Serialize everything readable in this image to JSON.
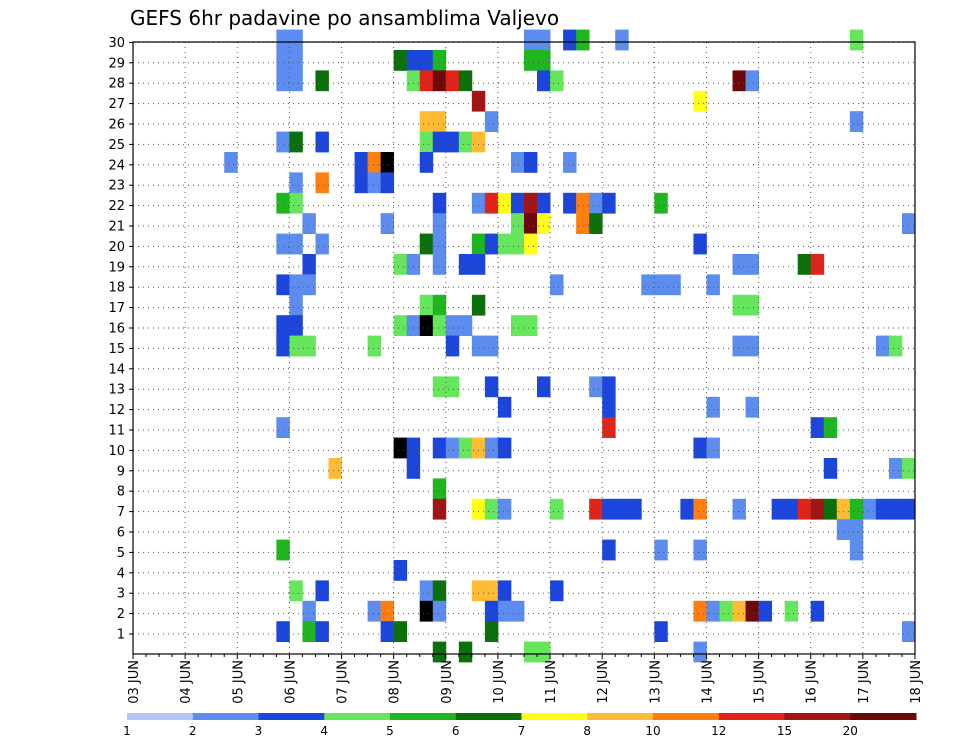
{
  "chart_data": {
    "type": "heatmap",
    "title": "GEFS 6hr padavine po ansamblima Valjevo",
    "xlabel": "",
    "ylabel": "",
    "x_ticks": [
      "03 JUN",
      "04 JUN",
      "05 JUN",
      "06 JUN",
      "07 JUN",
      "08 JUN",
      "09 JUN",
      "10 JUN",
      "11 JUN",
      "12 JUN",
      "13 JUN",
      "14 JUN",
      "15 JUN",
      "16 JUN",
      "17 JUN",
      "18 JUN"
    ],
    "xlim": [
      0,
      60
    ],
    "y_ticks": [
      "1",
      "2",
      "3",
      "4",
      "5",
      "6",
      "7",
      "8",
      "9",
      "10",
      "11",
      "12",
      "13",
      "14",
      "15",
      "16",
      "17",
      "18",
      "19",
      "20",
      "21",
      "22",
      "23",
      "24",
      "25",
      "26",
      "27",
      "28",
      "29",
      "30"
    ],
    "ylim": [
      0,
      30
    ],
    "grid": true,
    "colorbar": {
      "placement": "bottom",
      "labels": [
        "1",
        "2",
        "3",
        "4",
        "5",
        "6",
        "7",
        "8",
        "10",
        "12",
        "15",
        "20"
      ],
      "colors": [
        "#b3c6f7",
        "#5c8ced",
        "#1c46db",
        "#66e65c",
        "#1fb61f",
        "#0b700b",
        "#ffff1a",
        "#ffbb33",
        "#ff7f0e",
        "#e0241a",
        "#a01515",
        "#6e0909"
      ]
    },
    "cells": [
      [
        11,
        30,
        1
      ],
      [
        12,
        30,
        1
      ],
      [
        30,
        30,
        1
      ],
      [
        31,
        30,
        1
      ],
      [
        33,
        30,
        2
      ],
      [
        34,
        30,
        4
      ],
      [
        37,
        30,
        1
      ],
      [
        55,
        30,
        3
      ],
      [
        11,
        29,
        1
      ],
      [
        12,
        29,
        1
      ],
      [
        20,
        29,
        5
      ],
      [
        21,
        29,
        2
      ],
      [
        22,
        29,
        2
      ],
      [
        23,
        29,
        4
      ],
      [
        30,
        29,
        4
      ],
      [
        31,
        29,
        4
      ],
      [
        11,
        28,
        1
      ],
      [
        12,
        28,
        1
      ],
      [
        14,
        28,
        5
      ],
      [
        21,
        28,
        3
      ],
      [
        22,
        28,
        9
      ],
      [
        23,
        28,
        11
      ],
      [
        24,
        28,
        9
      ],
      [
        25,
        28,
        5
      ],
      [
        31,
        28,
        2
      ],
      [
        32,
        28,
        3
      ],
      [
        46,
        28,
        11
      ],
      [
        47,
        28,
        1
      ],
      [
        26,
        27,
        10
      ],
      [
        43,
        27,
        6
      ],
      [
        22,
        26,
        7
      ],
      [
        23,
        26,
        7
      ],
      [
        27,
        26,
        1
      ],
      [
        55,
        26,
        1
      ],
      [
        11,
        25,
        1
      ],
      [
        12,
        25,
        5
      ],
      [
        14,
        25,
        2
      ],
      [
        22,
        25,
        3
      ],
      [
        23,
        25,
        2
      ],
      [
        24,
        25,
        2
      ],
      [
        25,
        25,
        3
      ],
      [
        26,
        25,
        7
      ],
      [
        7,
        24,
        1
      ],
      [
        17,
        24,
        2
      ],
      [
        18,
        24,
        8
      ],
      [
        19,
        24,
        12
      ],
      [
        22,
        24,
        2
      ],
      [
        29,
        24,
        1
      ],
      [
        30,
        24,
        2
      ],
      [
        33,
        24,
        1
      ],
      [
        12,
        23,
        1
      ],
      [
        14,
        23,
        8
      ],
      [
        17,
        23,
        2
      ],
      [
        18,
        23,
        1
      ],
      [
        19,
        23,
        2
      ],
      [
        11,
        22,
        4
      ],
      [
        12,
        22,
        3
      ],
      [
        23,
        22,
        2
      ],
      [
        26,
        22,
        1
      ],
      [
        27,
        22,
        9
      ],
      [
        28,
        22,
        6
      ],
      [
        29,
        22,
        2
      ],
      [
        30,
        22,
        10
      ],
      [
        31,
        22,
        2
      ],
      [
        33,
        22,
        2
      ],
      [
        34,
        22,
        8
      ],
      [
        35,
        22,
        1
      ],
      [
        36,
        22,
        2
      ],
      [
        40,
        22,
        4
      ],
      [
        13,
        21,
        1
      ],
      [
        19,
        21,
        1
      ],
      [
        23,
        21,
        1
      ],
      [
        29,
        21,
        3
      ],
      [
        30,
        21,
        11
      ],
      [
        31,
        21,
        6
      ],
      [
        34,
        21,
        8
      ],
      [
        35,
        21,
        5
      ],
      [
        59,
        21,
        1
      ],
      [
        11,
        20,
        1
      ],
      [
        12,
        20,
        1
      ],
      [
        14,
        20,
        1
      ],
      [
        22,
        20,
        5
      ],
      [
        23,
        20,
        1
      ],
      [
        26,
        20,
        4
      ],
      [
        27,
        20,
        2
      ],
      [
        28,
        20,
        3
      ],
      [
        29,
        20,
        3
      ],
      [
        30,
        20,
        6
      ],
      [
        43,
        20,
        2
      ],
      [
        13,
        19,
        2
      ],
      [
        20,
        19,
        3
      ],
      [
        21,
        19,
        1
      ],
      [
        23,
        19,
        1
      ],
      [
        25,
        19,
        2
      ],
      [
        26,
        19,
        2
      ],
      [
        46,
        19,
        1
      ],
      [
        47,
        19,
        1
      ],
      [
        51,
        19,
        5
      ],
      [
        52,
        19,
        9
      ],
      [
        11,
        18,
        2
      ],
      [
        12,
        18,
        1
      ],
      [
        13,
        18,
        1
      ],
      [
        32,
        18,
        1
      ],
      [
        39,
        18,
        1
      ],
      [
        40,
        18,
        1
      ],
      [
        41,
        18,
        1
      ],
      [
        44,
        18,
        1
      ],
      [
        12,
        17,
        1
      ],
      [
        22,
        17,
        3
      ],
      [
        23,
        17,
        4
      ],
      [
        26,
        17,
        5
      ],
      [
        46,
        17,
        3
      ],
      [
        47,
        17,
        3
      ],
      [
        11,
        16,
        2
      ],
      [
        12,
        16,
        2
      ],
      [
        20,
        16,
        3
      ],
      [
        21,
        16,
        1
      ],
      [
        22,
        16,
        12
      ],
      [
        23,
        16,
        3
      ],
      [
        24,
        16,
        1
      ],
      [
        25,
        16,
        1
      ],
      [
        29,
        16,
        3
      ],
      [
        30,
        16,
        3
      ],
      [
        11,
        15,
        2
      ],
      [
        12,
        15,
        3
      ],
      [
        13,
        15,
        3
      ],
      [
        18,
        15,
        3
      ],
      [
        24,
        15,
        2
      ],
      [
        26,
        15,
        1
      ],
      [
        27,
        15,
        1
      ],
      [
        46,
        15,
        1
      ],
      [
        47,
        15,
        1
      ],
      [
        57,
        15,
        1
      ],
      [
        58,
        15,
        3
      ],
      [
        23,
        13,
        3
      ],
      [
        24,
        13,
        3
      ],
      [
        27,
        13,
        2
      ],
      [
        31,
        13,
        2
      ],
      [
        35,
        13,
        1
      ],
      [
        36,
        13,
        2
      ],
      [
        28,
        12,
        2
      ],
      [
        36,
        12,
        2
      ],
      [
        44,
        12,
        1
      ],
      [
        47,
        12,
        1
      ],
      [
        11,
        11,
        1
      ],
      [
        36,
        11,
        9
      ],
      [
        52,
        11,
        2
      ],
      [
        53,
        11,
        4
      ],
      [
        20,
        10,
        12
      ],
      [
        21,
        10,
        2
      ],
      [
        23,
        10,
        2
      ],
      [
        24,
        10,
        1
      ],
      [
        25,
        10,
        3
      ],
      [
        26,
        10,
        7
      ],
      [
        27,
        10,
        1
      ],
      [
        28,
        10,
        2
      ],
      [
        43,
        10,
        2
      ],
      [
        44,
        10,
        1
      ],
      [
        15,
        9,
        7
      ],
      [
        21,
        9,
        2
      ],
      [
        53,
        9,
        2
      ],
      [
        58,
        9,
        1
      ],
      [
        59,
        9,
        3
      ],
      [
        23,
        8,
        4
      ],
      [
        23,
        7,
        10
      ],
      [
        26,
        7,
        6
      ],
      [
        27,
        7,
        3
      ],
      [
        28,
        7,
        1
      ],
      [
        32,
        7,
        3
      ],
      [
        35,
        7,
        9
      ],
      [
        36,
        7,
        2
      ],
      [
        37,
        7,
        2
      ],
      [
        38,
        7,
        2
      ],
      [
        42,
        7,
        2
      ],
      [
        43,
        7,
        8
      ],
      [
        46,
        7,
        1
      ],
      [
        49,
        7,
        2
      ],
      [
        50,
        7,
        2
      ],
      [
        51,
        7,
        9
      ],
      [
        52,
        7,
        10
      ],
      [
        53,
        7,
        5
      ],
      [
        54,
        7,
        7
      ],
      [
        55,
        7,
        4
      ],
      [
        56,
        7,
        1
      ],
      [
        57,
        7,
        2
      ],
      [
        58,
        7,
        2
      ],
      [
        59,
        7,
        2
      ],
      [
        54,
        6,
        1
      ],
      [
        55,
        6,
        1
      ],
      [
        11,
        5,
        4
      ],
      [
        36,
        5,
        2
      ],
      [
        40,
        5,
        1
      ],
      [
        43,
        5,
        1
      ],
      [
        55,
        5,
        1
      ],
      [
        20,
        4,
        2
      ],
      [
        12,
        3,
        3
      ],
      [
        14,
        3,
        2
      ],
      [
        22,
        3,
        1
      ],
      [
        23,
        3,
        5
      ],
      [
        26,
        3,
        7
      ],
      [
        27,
        3,
        7
      ],
      [
        28,
        3,
        2
      ],
      [
        32,
        3,
        2
      ],
      [
        13,
        2,
        1
      ],
      [
        18,
        2,
        1
      ],
      [
        19,
        2,
        8
      ],
      [
        22,
        2,
        12
      ],
      [
        23,
        2,
        1
      ],
      [
        27,
        2,
        2
      ],
      [
        28,
        2,
        1
      ],
      [
        29,
        2,
        1
      ],
      [
        43,
        2,
        8
      ],
      [
        44,
        2,
        1
      ],
      [
        45,
        2,
        3
      ],
      [
        46,
        2,
        7
      ],
      [
        47,
        2,
        11
      ],
      [
        48,
        2,
        2
      ],
      [
        50,
        2,
        3
      ],
      [
        52,
        2,
        2
      ],
      [
        11,
        1,
        2
      ],
      [
        13,
        1,
        4
      ],
      [
        14,
        1,
        2
      ],
      [
        19,
        1,
        2
      ],
      [
        20,
        1,
        5
      ],
      [
        27,
        1,
        5
      ],
      [
        40,
        1,
        2
      ],
      [
        59,
        1,
        1
      ],
      [
        23,
        0,
        5
      ],
      [
        25,
        0,
        5
      ],
      [
        30,
        0,
        3
      ],
      [
        31,
        0,
        3
      ],
      [
        43,
        0,
        1
      ]
    ]
  }
}
